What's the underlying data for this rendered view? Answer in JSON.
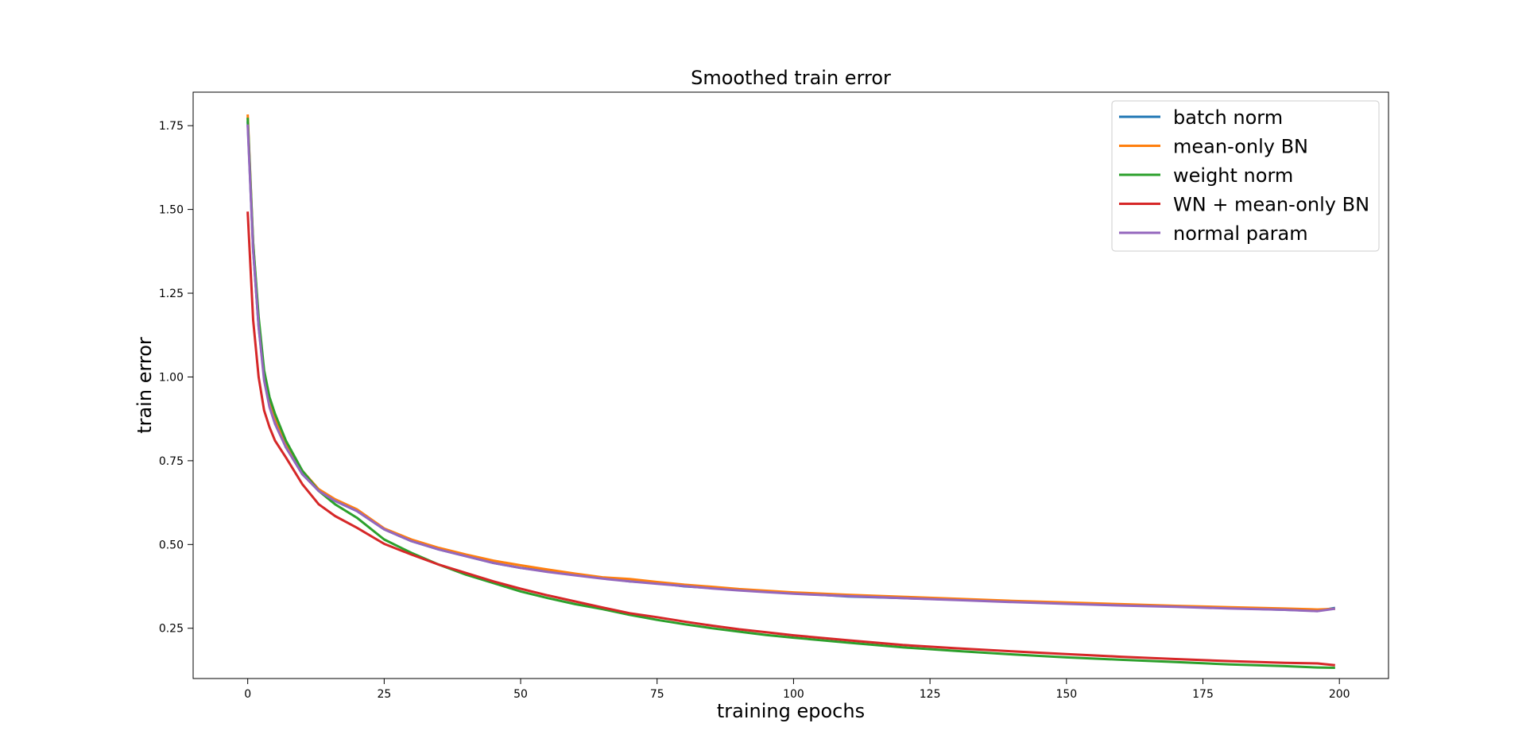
{
  "chart_data": {
    "type": "line",
    "title": "Smoothed train error",
    "xlabel": "training epochs",
    "ylabel": "train error",
    "xlim": [
      -10,
      209
    ],
    "ylim": [
      0.1,
      1.85
    ],
    "xticks": [
      0,
      25,
      50,
      75,
      100,
      125,
      150,
      175,
      200
    ],
    "yticks": [
      0.25,
      0.5,
      0.75,
      1.0,
      1.25,
      1.5,
      1.75
    ],
    "xtick_labels": [
      "0",
      "25",
      "50",
      "75",
      "100",
      "125",
      "150",
      "175",
      "200"
    ],
    "ytick_labels": [
      "0.25",
      "0.50",
      "0.75",
      "1.00",
      "1.25",
      "1.50",
      "1.75"
    ],
    "grid": false,
    "legend_position": "top-right",
    "series": [
      {
        "name": "batch norm",
        "color": "#1f77b4",
        "x": [
          0,
          1,
          2,
          3,
          4,
          5,
          7,
          10,
          13,
          16,
          20,
          25,
          30,
          35,
          40,
          45,
          50,
          55,
          60,
          65,
          70,
          75,
          80,
          85,
          90,
          95,
          100,
          110,
          120,
          130,
          140,
          150,
          160,
          170,
          180,
          190,
          196,
          199
        ],
        "y": [
          1.76,
          1.38,
          1.15,
          1.0,
          0.92,
          0.87,
          0.79,
          0.71,
          0.66,
          0.63,
          0.6,
          0.545,
          0.51,
          0.485,
          0.465,
          0.445,
          0.43,
          0.42,
          0.41,
          0.4,
          0.39,
          0.385,
          0.375,
          0.37,
          0.365,
          0.36,
          0.355,
          0.345,
          0.34,
          0.335,
          0.33,
          0.325,
          0.32,
          0.315,
          0.31,
          0.305,
          0.302,
          0.31
        ]
      },
      {
        "name": "mean-only BN",
        "color": "#ff7f0e",
        "x": [
          0,
          1,
          2,
          3,
          4,
          5,
          7,
          10,
          13,
          16,
          20,
          25,
          30,
          35,
          40,
          45,
          50,
          55,
          60,
          65,
          70,
          75,
          80,
          85,
          90,
          95,
          100,
          110,
          120,
          130,
          140,
          150,
          160,
          170,
          180,
          190,
          196,
          199
        ],
        "y": [
          1.78,
          1.4,
          1.17,
          1.01,
          0.93,
          0.88,
          0.8,
          0.72,
          0.665,
          0.635,
          0.605,
          0.548,
          0.515,
          0.49,
          0.47,
          0.452,
          0.438,
          0.425,
          0.413,
          0.402,
          0.397,
          0.388,
          0.38,
          0.374,
          0.367,
          0.362,
          0.357,
          0.35,
          0.344,
          0.338,
          0.332,
          0.327,
          0.322,
          0.317,
          0.313,
          0.309,
          0.306,
          0.308
        ]
      },
      {
        "name": "weight norm",
        "color": "#2ca02c",
        "x": [
          0,
          1,
          2,
          3,
          4,
          5,
          7,
          10,
          13,
          16,
          20,
          25,
          30,
          35,
          40,
          45,
          50,
          55,
          60,
          65,
          70,
          75,
          80,
          85,
          90,
          95,
          100,
          110,
          120,
          130,
          140,
          150,
          160,
          170,
          180,
          190,
          196,
          199
        ],
        "y": [
          1.77,
          1.4,
          1.18,
          1.02,
          0.94,
          0.89,
          0.81,
          0.72,
          0.66,
          0.62,
          0.58,
          0.515,
          0.475,
          0.44,
          0.41,
          0.385,
          0.36,
          0.34,
          0.322,
          0.307,
          0.29,
          0.275,
          0.262,
          0.25,
          0.24,
          0.23,
          0.222,
          0.207,
          0.193,
          0.182,
          0.172,
          0.163,
          0.156,
          0.149,
          0.142,
          0.137,
          0.133,
          0.132
        ]
      },
      {
        "name": "WN + mean-only BN",
        "color": "#d62728",
        "x": [
          0,
          1,
          2,
          3,
          4,
          5,
          7,
          10,
          13,
          16,
          20,
          25,
          30,
          35,
          40,
          45,
          50,
          55,
          60,
          65,
          70,
          75,
          80,
          85,
          90,
          95,
          100,
          110,
          120,
          130,
          140,
          150,
          160,
          170,
          180,
          190,
          196,
          199
        ],
        "y": [
          1.49,
          1.17,
          1.0,
          0.9,
          0.85,
          0.81,
          0.76,
          0.68,
          0.62,
          0.585,
          0.55,
          0.502,
          0.47,
          0.44,
          0.415,
          0.39,
          0.368,
          0.348,
          0.33,
          0.312,
          0.295,
          0.283,
          0.27,
          0.258,
          0.247,
          0.238,
          0.229,
          0.214,
          0.2,
          0.19,
          0.181,
          0.173,
          0.165,
          0.158,
          0.152,
          0.147,
          0.145,
          0.14
        ]
      },
      {
        "name": "normal param",
        "color": "#9467bd",
        "x": [
          0,
          1,
          2,
          3,
          4,
          5,
          7,
          10,
          13,
          16,
          20,
          25,
          30,
          35,
          40,
          45,
          50,
          55,
          60,
          65,
          70,
          75,
          80,
          85,
          90,
          95,
          100,
          110,
          120,
          130,
          140,
          150,
          160,
          170,
          180,
          190,
          196,
          199
        ],
        "y": [
          1.75,
          1.38,
          1.15,
          0.99,
          0.91,
          0.86,
          0.79,
          0.71,
          0.66,
          0.63,
          0.6,
          0.545,
          0.51,
          0.485,
          0.465,
          0.445,
          0.43,
          0.418,
          0.408,
          0.398,
          0.39,
          0.383,
          0.376,
          0.369,
          0.363,
          0.358,
          0.353,
          0.346,
          0.34,
          0.334,
          0.328,
          0.323,
          0.318,
          0.314,
          0.309,
          0.305,
          0.301,
          0.308
        ]
      }
    ]
  }
}
